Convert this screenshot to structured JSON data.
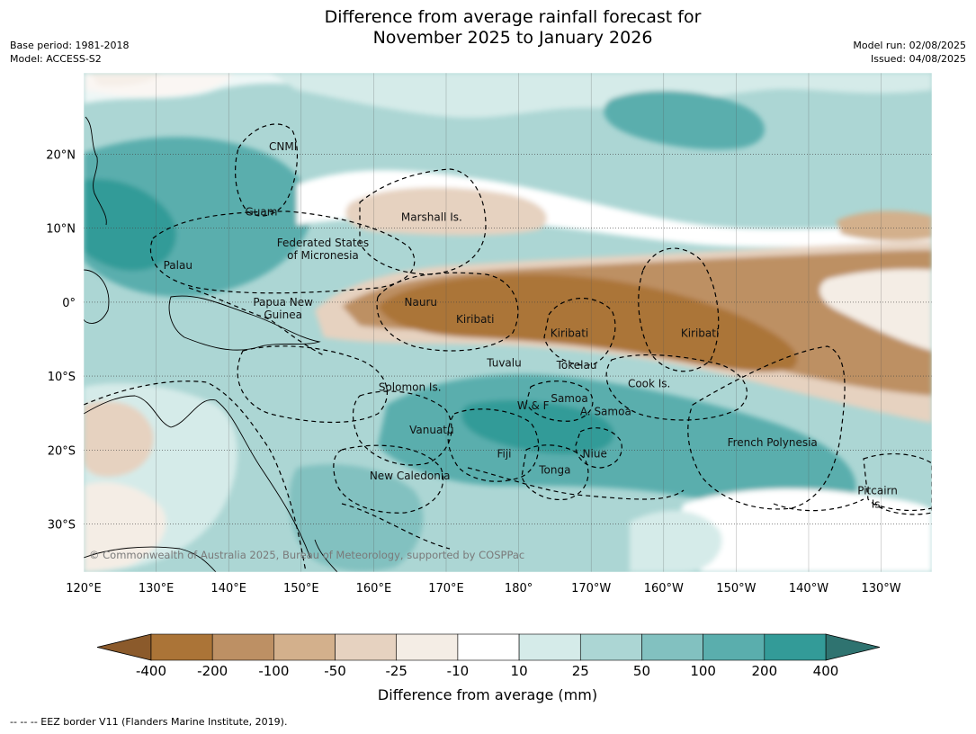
{
  "title": {
    "line1": "Difference from average rainfall forecast for",
    "line2": "November 2025 to January 2026"
  },
  "meta_left": {
    "base_period": "Base period: 1981-2018",
    "model": "Model: ACCESS-S2"
  },
  "meta_right": {
    "model_run": "Model run: 02/08/2025",
    "issued": "Issued: 04/08/2025"
  },
  "map": {
    "lon_labels": [
      "120°E",
      "130°E",
      "140°E",
      "150°E",
      "160°E",
      "170°E",
      "180°",
      "170°W",
      "160°W",
      "150°W",
      "140°W",
      "130°W"
    ],
    "lat_labels": [
      "20°N",
      "10°N",
      "0°",
      "10°S",
      "20°S",
      "30°S"
    ],
    "lon_range": [
      120,
      237
    ],
    "lat_range": [
      -36.5,
      31
    ],
    "copyright": "© Commonwealth of Australia 2025, Bureau of Meteorology, supported by COSPPac",
    "regions": [
      {
        "name": "CNMI",
        "lon": 147.5,
        "lat": 21
      },
      {
        "name": "Guam",
        "lon": 144.5,
        "lat": 12.2
      },
      {
        "name": "Marshall Is.",
        "lon": 168,
        "lat": 11.5
      },
      {
        "name": "Federated States",
        "lon": 153,
        "lat": 8
      },
      {
        "name": "of Micronesia",
        "lon": 153,
        "lat": 6.3
      },
      {
        "name": "Palau",
        "lon": 133,
        "lat": 5
      },
      {
        "name": "Papua New",
        "lon": 147.5,
        "lat": 0
      },
      {
        "name": "Guinea",
        "lon": 147.5,
        "lat": -1.7
      },
      {
        "name": "Nauru",
        "lon": 166.5,
        "lat": 0
      },
      {
        "name": "Kiribati",
        "lon": 174,
        "lat": -2.3
      },
      {
        "name": "Kiribati",
        "lon": 187,
        "lat": -4.2
      },
      {
        "name": "Kiribati",
        "lon": 205,
        "lat": -4.2
      },
      {
        "name": "Tuvalu",
        "lon": 178,
        "lat": -8.2
      },
      {
        "name": "Tokelau",
        "lon": 188,
        "lat": -8.5
      },
      {
        "name": "Cook Is.",
        "lon": 198,
        "lat": -11
      },
      {
        "name": "Solomon Is.",
        "lon": 165,
        "lat": -11.5
      },
      {
        "name": "Samoa",
        "lon": 187,
        "lat": -13
      },
      {
        "name": "W & F",
        "lon": 182,
        "lat": -14
      },
      {
        "name": "A. Samoa",
        "lon": 192,
        "lat": -14.8
      },
      {
        "name": "Vanuatu",
        "lon": 168,
        "lat": -17.3
      },
      {
        "name": "Fiji",
        "lon": 178,
        "lat": -20.5
      },
      {
        "name": "Niue",
        "lon": 190.5,
        "lat": -20.5
      },
      {
        "name": "French Polynesia",
        "lon": 215,
        "lat": -19
      },
      {
        "name": "Tonga",
        "lon": 185,
        "lat": -22.7
      },
      {
        "name": "New Caledonia",
        "lon": 165,
        "lat": -23.5
      },
      {
        "name": "Pitcairn",
        "lon": 229.5,
        "lat": -25.5
      },
      {
        "name": "Is.",
        "lon": 229.5,
        "lat": -27.3
      }
    ]
  },
  "colorbar": {
    "labels": [
      "-400",
      "-200",
      "-100",
      "-50",
      "-25",
      "-10",
      "10",
      "25",
      "50",
      "100",
      "200",
      "400"
    ],
    "colors": [
      "#ab7437",
      "#bd9064",
      "#d3b08c",
      "#e6d2c0",
      "#f4ede5",
      "#ffffff",
      "#d5ebe9",
      "#acd6d4",
      "#82c1c0",
      "#5aaead",
      "#339b98"
    ],
    "extend_low_color": "#8b5a2b",
    "extend_high_color": "#2f7370",
    "title": "Difference from average (mm)"
  },
  "footnote": "--  --  -- EEZ border V11 (Flanders Marine Institute, 2019)."
}
